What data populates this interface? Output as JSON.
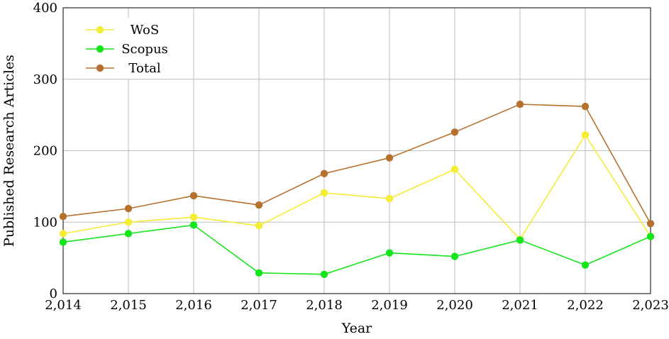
{
  "chart_data": {
    "type": "line",
    "title": "",
    "xlabel": "Year",
    "ylabel": "Published Research Articles",
    "x": [
      2014,
      2015,
      2016,
      2017,
      2018,
      2019,
      2020,
      2021,
      2022,
      2023
    ],
    "x_tick_labels": [
      "2,014",
      "2,015",
      "2,016",
      "2,017",
      "2,018",
      "2,019",
      "2,020",
      "2,021",
      "2,022",
      "2,023"
    ],
    "y_ticks": [
      0,
      100,
      200,
      300,
      400
    ],
    "y_tick_labels": [
      "0",
      "100",
      "200",
      "300",
      "400"
    ],
    "xlim": [
      2014,
      2023
    ],
    "ylim": [
      0,
      400
    ],
    "grid": true,
    "legend_position": "top-left",
    "series": [
      {
        "name": "WoS",
        "color": "#f5ec35",
        "values": [
          84,
          100,
          107,
          95,
          141,
          133,
          174,
          76,
          222,
          80
        ]
      },
      {
        "name": "Scopus",
        "color": "#14e51c",
        "values": [
          72,
          84,
          96,
          29,
          27,
          57,
          52,
          75,
          40,
          80
        ]
      },
      {
        "name": "Total",
        "color": "#b5722e",
        "values": [
          108,
          119,
          137,
          124,
          168,
          190,
          226,
          265,
          262,
          98
        ]
      }
    ]
  }
}
